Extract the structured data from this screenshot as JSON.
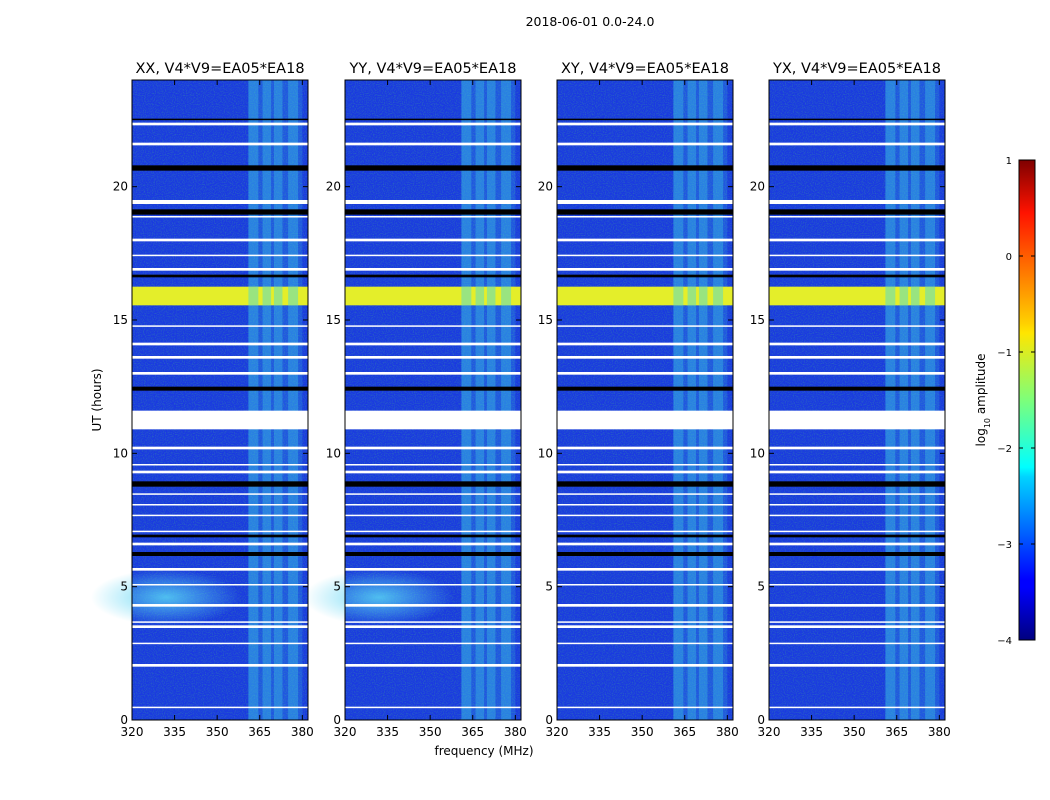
{
  "figure_title": "2018-06-01 0.0-24.0",
  "chart_data": {
    "type": "heatmap",
    "shared_ylabel": "UT (hours)",
    "shared_xlabel": "frequency (MHz)",
    "xlim": [
      320,
      382
    ],
    "ylim": [
      0,
      24
    ],
    "x_ticks": [
      320,
      335,
      350,
      365,
      380
    ],
    "y_ticks": [
      0,
      5,
      10,
      15,
      20
    ],
    "panels": [
      {
        "title": "XX, V4*V9=EA05*EA18",
        "polarization": "XX",
        "lowband_glow": true
      },
      {
        "title": "YY, V4*V9=EA05*EA18",
        "polarization": "YY",
        "lowband_glow": true
      },
      {
        "title": "XY, V4*V9=EA05*EA18",
        "polarization": "XY",
        "lowband_glow": false
      },
      {
        "title": "YX, V4*V9=EA05*EA18",
        "polarization": "YX",
        "lowband_glow": false
      }
    ],
    "rfi_band_mhz": [
      361,
      380
    ],
    "rfi_columns_mhz": [
      [
        361,
        364.5
      ],
      [
        366,
        369
      ],
      [
        370,
        373
      ],
      [
        375,
        378.5
      ]
    ],
    "strong_rfi_ut": [
      15.55,
      16.25
    ],
    "flagged_ut": [
      [
        10.9,
        11.6
      ],
      [
        0.45,
        0.5
      ],
      [
        2.0,
        2.1
      ],
      [
        2.85,
        2.9
      ],
      [
        3.45,
        3.55
      ],
      [
        3.65,
        3.7
      ],
      [
        4.25,
        4.35
      ],
      [
        5.05,
        5.1
      ],
      [
        5.6,
        5.7
      ],
      [
        6.55,
        6.65
      ],
      [
        7.05,
        7.1
      ],
      [
        7.65,
        7.7
      ],
      [
        8.05,
        8.1
      ],
      [
        8.45,
        8.5
      ],
      [
        9.25,
        9.35
      ],
      [
        9.55,
        9.6
      ],
      [
        10.15,
        10.25
      ],
      [
        12.95,
        13.05
      ],
      [
        13.55,
        13.65
      ],
      [
        14.05,
        14.15
      ],
      [
        14.75,
        14.8
      ],
      [
        16.85,
        16.95
      ],
      [
        17.4,
        17.45
      ],
      [
        17.95,
        18.05
      ],
      [
        18.85,
        18.9
      ],
      [
        19.35,
        19.5
      ],
      [
        21.55,
        21.65
      ],
      [
        22.3,
        22.4
      ]
    ],
    "dark_ut": [
      [
        6.15,
        6.3
      ],
      [
        6.85,
        6.95
      ],
      [
        8.75,
        8.95
      ],
      [
        12.35,
        12.5
      ],
      [
        16.6,
        16.7
      ],
      [
        18.95,
        19.15
      ],
      [
        20.6,
        20.8
      ],
      [
        22.5,
        22.55
      ]
    ],
    "colorbar": {
      "label": "log10 amplitude",
      "label_main": "log",
      "label_sub": "10",
      "label_rest": " amplitude",
      "min": -4,
      "max": 1,
      "ticks": [
        -4,
        -3,
        -2,
        -1,
        0,
        1
      ],
      "tick_labels": [
        "−4",
        "−3",
        "−2",
        "−1",
        "0",
        "1"
      ],
      "colormap": "jet"
    },
    "colors": {
      "background": "#1a3ae0",
      "rfi": "#3fd6e8",
      "strong_rfi": "#e4ee2a",
      "flag": "#ffffff",
      "dark": "#000000"
    }
  }
}
